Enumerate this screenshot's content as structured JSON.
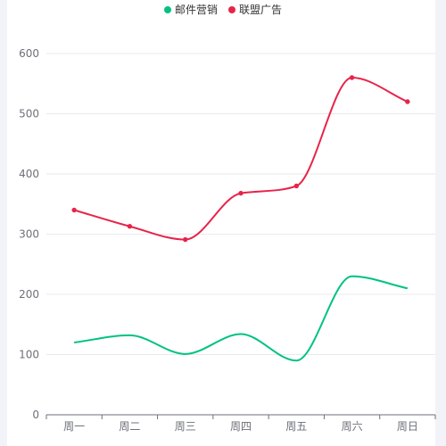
{
  "chart_data": {
    "type": "line",
    "smooth": true,
    "categories": [
      "周一",
      "周二",
      "周三",
      "周四",
      "周五",
      "周六",
      "周日"
    ],
    "series": [
      {
        "name": "邮件营销",
        "values": [
          120,
          132,
          101,
          134,
          90,
          230,
          210
        ],
        "color": "#00c281",
        "show_markers": false
      },
      {
        "name": "联盟广告",
        "values": [
          340,
          313,
          291,
          368,
          380,
          560,
          520
        ],
        "color": "#e8234a",
        "show_markers": true
      }
    ],
    "ylim": [
      0,
      600
    ],
    "yticks": [
      0,
      100,
      200,
      300,
      400,
      500,
      600
    ],
    "grid": true,
    "legend_position": "top-center",
    "xlabel": "",
    "ylabel": "",
    "title": ""
  }
}
